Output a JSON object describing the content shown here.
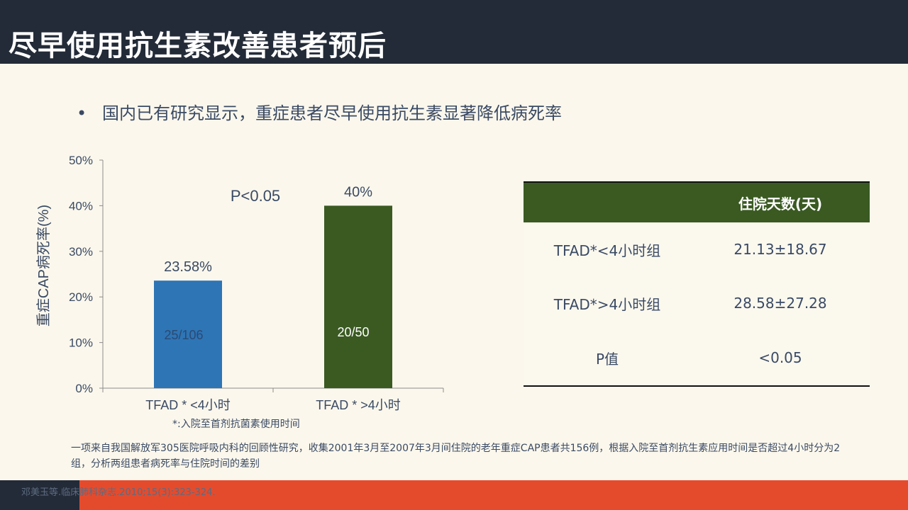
{
  "slide": {
    "title": "尽早使用抗生素改善患者预后",
    "bullet_symbol": "•",
    "bullet_text": "国内已有研究显示，重症患者尽早使用抗生素显著降低病死率",
    "footnote": "*:入院至首剂抗菌素使用时间",
    "description": "一项来自我国解放军305医院呼吸内科的回顾性研究，收集2001年3月至2007年3月间住院的老年重症CAP患者共156例，根据入院至首剂抗生素应用时间是否超过4小时分为2组，分析两组患者病死率与住院时间的差别",
    "citation": "邓美玉等.临床肺科杂志.2010;15(3):323-324."
  },
  "colors": {
    "header_bg": "#232b38",
    "background": "#fbf7ec",
    "bar_blue": "#2e75b6",
    "bar_green": "#3a5a22",
    "table_header_bg": "#3a5a22",
    "footer_red": "#e44b2d",
    "text": "#3a4a64"
  },
  "chart_data": {
    "type": "bar",
    "ylabel": "重症CAP病死率(%)",
    "ylim": [
      0,
      50
    ],
    "yticks": [
      0,
      10,
      20,
      30,
      40,
      50
    ],
    "ytick_labels": [
      "0%",
      "10%",
      "20%",
      "30%",
      "40%",
      "50%"
    ],
    "categories": [
      "TFAD * <4小时",
      "TFAD * >4小时"
    ],
    "values": [
      23.58,
      40
    ],
    "value_labels": [
      "23.58%",
      "40%"
    ],
    "count_labels": [
      "25/106",
      "20/50"
    ],
    "bar_colors": [
      "#2e75b6",
      "#3a5a22"
    ],
    "annotation": "P<0.05",
    "grid": false,
    "legend": "none"
  },
  "table": {
    "header": [
      "",
      "住院天数(天)"
    ],
    "rows": [
      [
        "TFAD*<4小时组",
        "21.13±18.67"
      ],
      [
        "TFAD*>4小时组",
        "28.58±27.28"
      ],
      [
        "P值",
        "<0.05"
      ]
    ]
  }
}
